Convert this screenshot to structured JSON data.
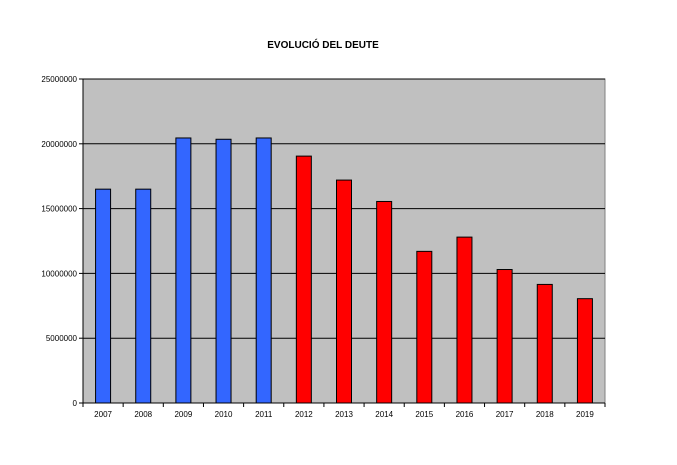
{
  "chart_data": {
    "type": "bar",
    "title": "EVOLUCIÓ DEL DEUTE",
    "xlabel": "",
    "ylabel": "",
    "categories": [
      "2007",
      "2008",
      "2009",
      "2010",
      "2011",
      "2012",
      "2013",
      "2014",
      "2015",
      "2016",
      "2017",
      "2018",
      "2019"
    ],
    "values": [
      16500000,
      16500000,
      20450000,
      20350000,
      20450000,
      19050000,
      17200000,
      15550000,
      11700000,
      12800000,
      10300000,
      9150000,
      8050000
    ],
    "bar_colors": [
      "#3366ff",
      "#3366ff",
      "#3366ff",
      "#3366ff",
      "#3366ff",
      "#ff0000",
      "#ff0000",
      "#ff0000",
      "#ff0000",
      "#ff0000",
      "#ff0000",
      "#ff0000",
      "#ff0000"
    ],
    "ylim": [
      0,
      25000000
    ],
    "yticks": [
      0,
      5000000,
      10000000,
      15000000,
      20000000,
      25000000
    ],
    "ytick_labels": [
      "0",
      "5000000",
      "10000000",
      "15000000",
      "20000000",
      "25000000"
    ],
    "plot_background": "#c0c0c0",
    "grid": true,
    "legend": "none"
  }
}
